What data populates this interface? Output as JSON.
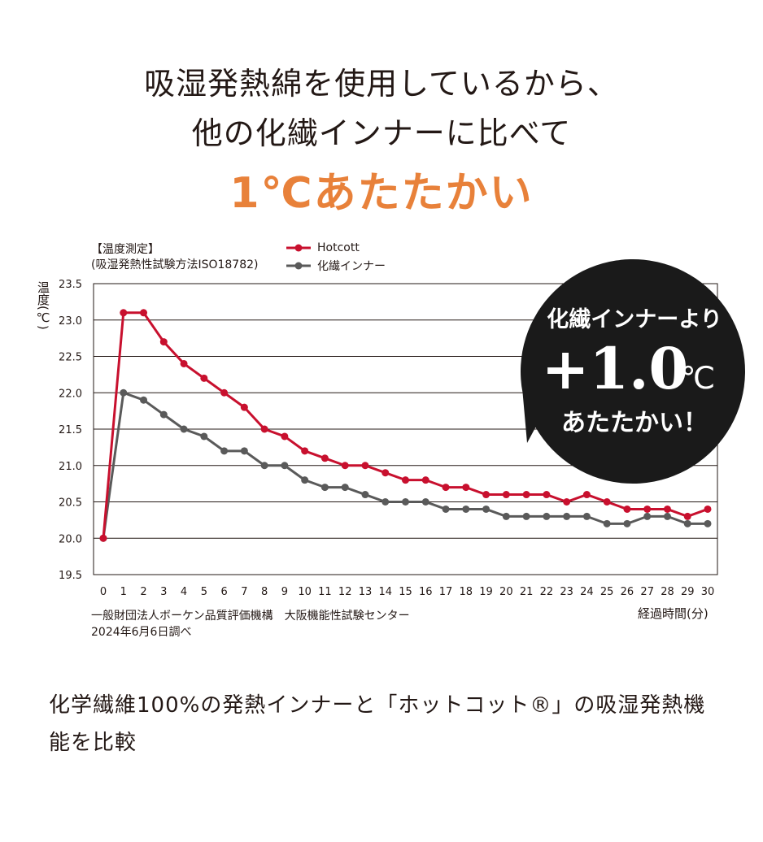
{
  "headline": {
    "line1": "吸湿発熱綿を使用しているから、",
    "line2": "他の化繊インナーに比べて",
    "line3": "1℃あたたかい"
  },
  "method_note": {
    "line1": "【温度測定】",
    "line2": "(吸湿発熱性試験方法ISO18782)"
  },
  "y_axis_label": "温度(℃)",
  "x_axis_unit": "経過時間(分)",
  "source": {
    "line1": "一般財団法人ボーケン品質評価機構　大阪機能性試験センター",
    "line2": "2024年6月6日調べ"
  },
  "callout": {
    "line1": "化繊インナーより",
    "value": "+1.0",
    "unit": "℃",
    "line3": "あたたかい！"
  },
  "footer": "化学繊維100%の発熱インナーと「ホットコット®」の吸湿発熱機能を比較",
  "colors": {
    "headline_accent": "#e8813a",
    "hotcott": "#c8102e",
    "synthetic": "#5a5a5a",
    "callout_bg": "#1a1a1a"
  },
  "chart_data": {
    "type": "line",
    "x": [
      0,
      1,
      2,
      3,
      4,
      5,
      6,
      7,
      8,
      9,
      10,
      11,
      12,
      13,
      14,
      15,
      16,
      17,
      18,
      19,
      20,
      21,
      22,
      23,
      24,
      25,
      26,
      27,
      28,
      29,
      30
    ],
    "ylim": [
      19.5,
      23.5
    ],
    "yticks": [
      "19.5",
      "20.0",
      "20.5",
      "21.0",
      "21.5",
      "22.0",
      "22.5",
      "23.0",
      "23.5"
    ],
    "grid": true,
    "legend_position": "top",
    "series": [
      {
        "name": "Hotcott",
        "color": "#c8102e",
        "values": [
          20.0,
          23.1,
          23.1,
          22.7,
          22.4,
          22.2,
          22.0,
          21.8,
          21.5,
          21.4,
          21.2,
          21.1,
          21.0,
          21.0,
          20.9,
          20.8,
          20.8,
          20.7,
          20.7,
          20.6,
          20.6,
          20.6,
          20.6,
          20.5,
          20.6,
          20.5,
          20.4,
          20.4,
          20.4,
          20.3,
          20.4
        ]
      },
      {
        "name": "化繊インナー",
        "color": "#5a5a5a",
        "values": [
          20.0,
          22.0,
          21.9,
          21.7,
          21.5,
          21.4,
          21.2,
          21.2,
          21.0,
          21.0,
          20.8,
          20.7,
          20.7,
          20.6,
          20.5,
          20.5,
          20.5,
          20.4,
          20.4,
          20.4,
          20.3,
          20.3,
          20.3,
          20.3,
          20.3,
          20.2,
          20.2,
          20.3,
          20.3,
          20.2,
          20.2
        ]
      }
    ]
  }
}
